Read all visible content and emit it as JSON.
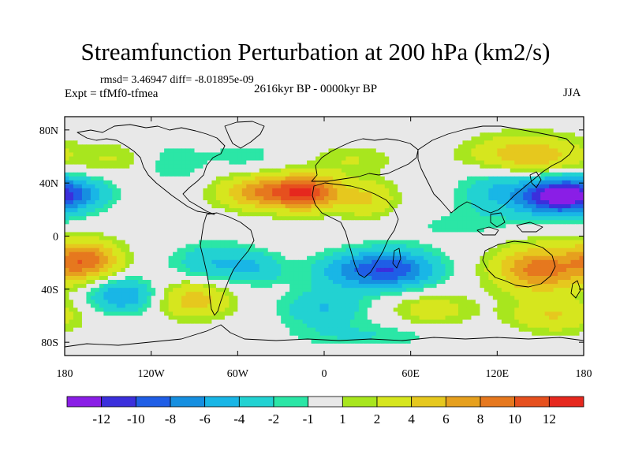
{
  "chart_data": {
    "type": "heatmap",
    "title": "Streamfunction Perturbation at 200 hPa (km2/s)",
    "stats": "rmsd= 3.46947 diff= -8.01895e-09",
    "experiment": "Expt = tfMf0-tfmea",
    "period": "2616kyr BP - 0000kyr BP",
    "season": "JJA",
    "xlim": [
      -180,
      180
    ],
    "ylim": [
      -90,
      90
    ],
    "x_ticks": [
      {
        "value": -180,
        "label": "180"
      },
      {
        "value": -120,
        "label": "120W"
      },
      {
        "value": -60,
        "label": "60W"
      },
      {
        "value": 0,
        "label": "0"
      },
      {
        "value": 60,
        "label": "60E"
      },
      {
        "value": 120,
        "label": "120E"
      },
      {
        "value": 180,
        "label": "180"
      }
    ],
    "y_ticks": [
      {
        "value": 80,
        "label": "80N"
      },
      {
        "value": 40,
        "label": "40N"
      },
      {
        "value": 0,
        "label": "0"
      },
      {
        "value": -40,
        "label": "40S"
      },
      {
        "value": -80,
        "label": "80S"
      }
    ],
    "colorbar": {
      "colors": [
        "#8a1ee6",
        "#3b2fdc",
        "#1f5ee6",
        "#168fe0",
        "#19b6e6",
        "#22d2d2",
        "#2be6a6",
        "#e8e8e8",
        "#a8e61e",
        "#d6e61e",
        "#e6c81e",
        "#e6a01e",
        "#e6781e",
        "#e6501e",
        "#e6281e"
      ],
      "labels": [
        "-12",
        "-10",
        "-8",
        "-6",
        "-4",
        "-2",
        "-1",
        "1",
        "2",
        "4",
        "6",
        "8",
        "10",
        "12"
      ]
    },
    "features": [
      {
        "lon": 160,
        "lat": 30,
        "sx": 18,
        "sy": 10,
        "amp": -12
      },
      {
        "lon": 120,
        "lat": 35,
        "sx": 18,
        "sy": 14,
        "amp": -4
      },
      {
        "lon": -175,
        "lat": 32,
        "sx": 18,
        "sy": 9,
        "amp": -6
      },
      {
        "lon": -105,
        "lat": 55,
        "sx": 16,
        "sy": 10,
        "amp": -2
      },
      {
        "lon": -55,
        "lat": 60,
        "sx": 18,
        "sy": 8,
        "amp": -1.5
      },
      {
        "lon": -40,
        "lat": 33,
        "sx": 22,
        "sy": 9,
        "amp": 8
      },
      {
        "lon": -10,
        "lat": 33,
        "sx": 16,
        "sy": 9,
        "amp": 9
      },
      {
        "lon": 30,
        "lat": 28,
        "sx": 14,
        "sy": 10,
        "amp": 4
      },
      {
        "lon": 140,
        "lat": 60,
        "sx": 28,
        "sy": 11,
        "amp": 6
      },
      {
        "lon": 20,
        "lat": 58,
        "sx": 20,
        "sy": 8,
        "amp": 2
      },
      {
        "lon": -145,
        "lat": 58,
        "sx": 18,
        "sy": 8,
        "amp": 2
      },
      {
        "lon": -165,
        "lat": -18,
        "sx": 16,
        "sy": 10,
        "amp": 9
      },
      {
        "lon": -75,
        "lat": -20,
        "sx": 20,
        "sy": 10,
        "amp": -4
      },
      {
        "lon": -45,
        "lat": -25,
        "sx": 14,
        "sy": 8,
        "amp": -3
      },
      {
        "lon": 45,
        "lat": -25,
        "sx": 22,
        "sy": 10,
        "amp": -10
      },
      {
        "lon": 10,
        "lat": -28,
        "sx": 16,
        "sy": 10,
        "amp": -3
      },
      {
        "lon": 150,
        "lat": -25,
        "sx": 22,
        "sy": 12,
        "amp": 9
      },
      {
        "lon": -140,
        "lat": -45,
        "sx": 16,
        "sy": 9,
        "amp": -6
      },
      {
        "lon": -90,
        "lat": -48,
        "sx": 18,
        "sy": 10,
        "amp": 5
      },
      {
        "lon": 0,
        "lat": -55,
        "sx": 20,
        "sy": 10,
        "amp": -4
      },
      {
        "lon": 75,
        "lat": -55,
        "sx": 20,
        "sy": 9,
        "amp": 3
      },
      {
        "lon": 160,
        "lat": -60,
        "sx": 22,
        "sy": 9,
        "amp": 4
      },
      {
        "lon": 30,
        "lat": -75,
        "sx": 35,
        "sy": 6,
        "amp": -2
      },
      {
        "lon": 90,
        "lat": 8,
        "sx": 25,
        "sy": 8,
        "amp": -1.2
      }
    ]
  }
}
